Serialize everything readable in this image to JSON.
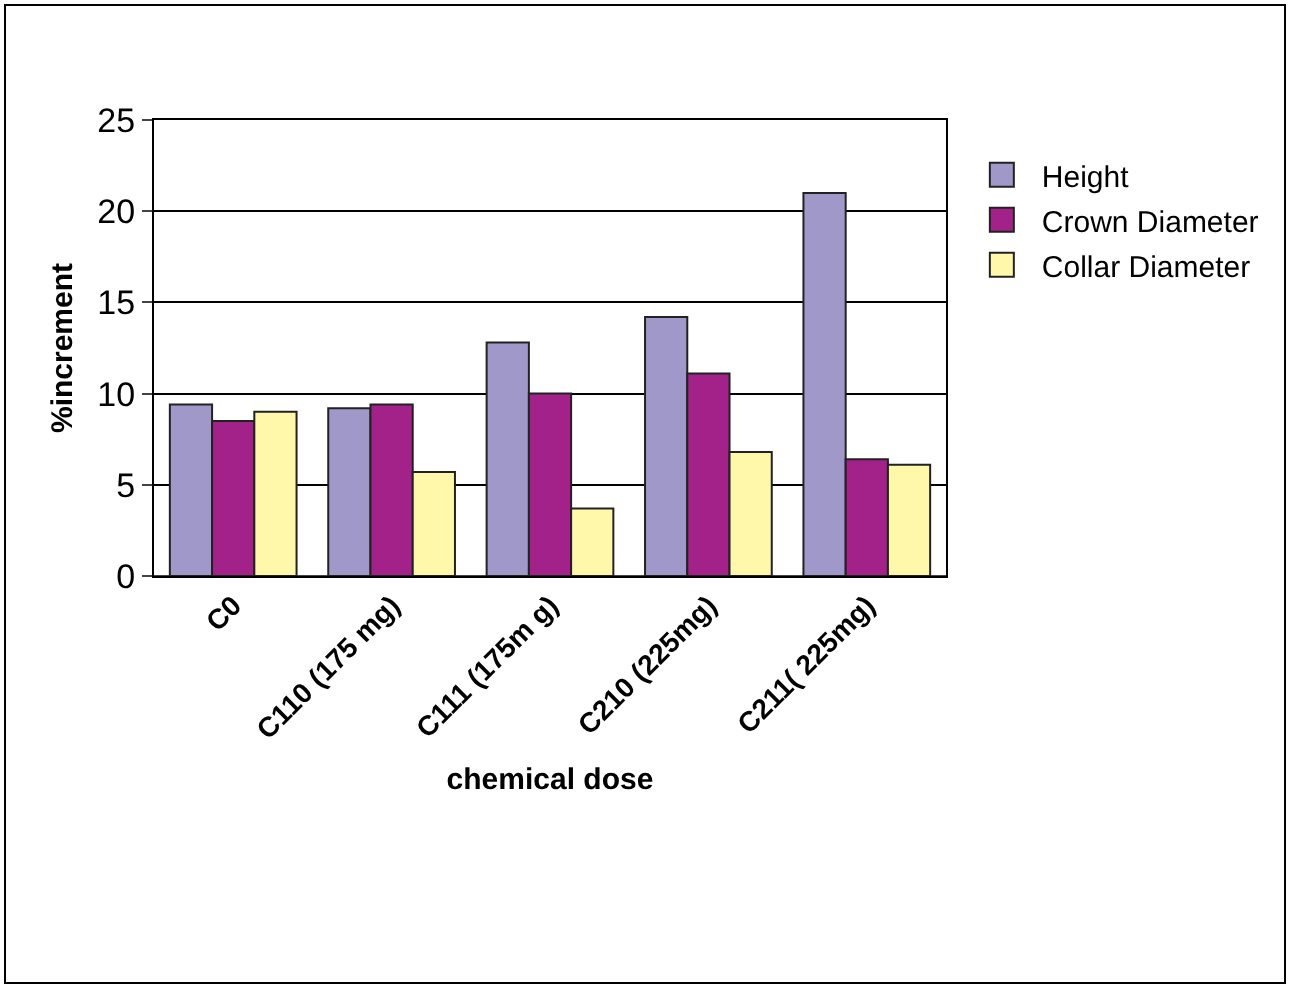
{
  "chart_data": {
    "type": "bar",
    "xlabel": "chemical dose",
    "ylabel": "%increment",
    "categories": [
      "C0",
      "C110 (175 mg)",
      "C111 (175m g)",
      "C210 (225mg)",
      "C211( 225mg)"
    ],
    "series": [
      {
        "name": "Height",
        "color": "#9f98c9",
        "values": [
          9.4,
          9.2,
          12.8,
          14.2,
          21.0
        ]
      },
      {
        "name": "Crown Diameter",
        "color": "#a3228a",
        "values": [
          8.5,
          9.4,
          10.0,
          11.1,
          6.4
        ]
      },
      {
        "name": "Collar Diameter",
        "color": "#fff8ab",
        "values": [
          9.0,
          5.7,
          3.7,
          6.8,
          6.1
        ]
      }
    ],
    "ylim": [
      0,
      25
    ],
    "yticks": [
      0,
      5,
      10,
      15,
      20,
      25
    ],
    "grid": "y",
    "legend": "right"
  }
}
